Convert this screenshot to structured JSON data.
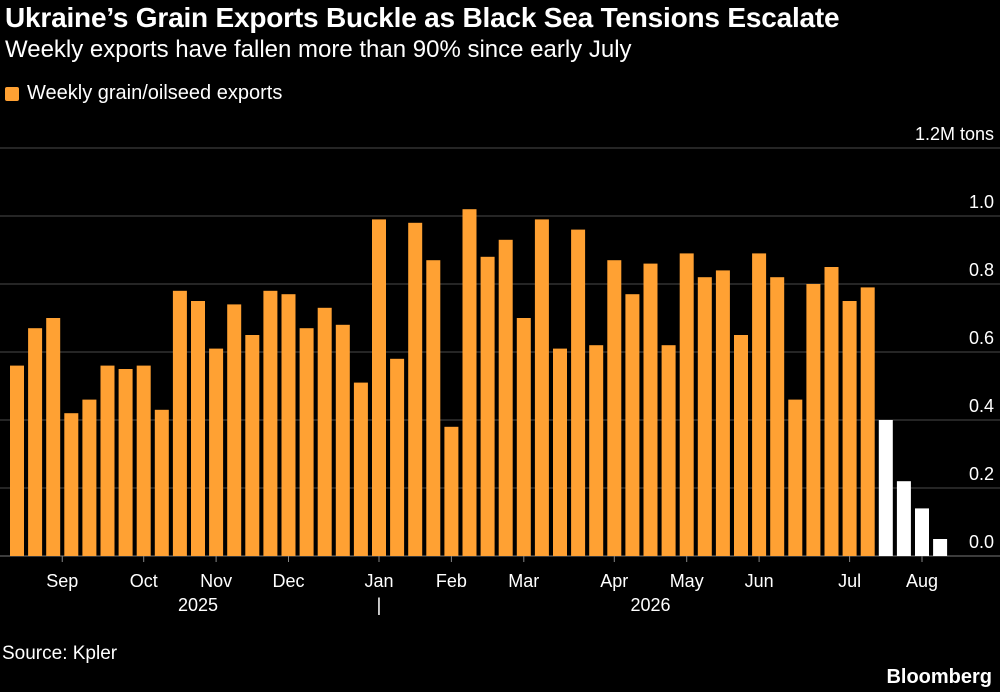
{
  "header": {
    "title": "Ukraine’s Grain Exports Buckle as Black Sea Tensions Escalate",
    "subtitle": "Weekly exports have fallen more than 90% since early July"
  },
  "legend": {
    "label": "Weekly grain/oilseed exports",
    "color": "#ffa133"
  },
  "footer": {
    "source": "Source: Kpler",
    "brand": "Bloomberg"
  },
  "colors": {
    "background": "#000000",
    "bar_main": "#ffa133",
    "bar_recent": "#ffffff",
    "grid": "#4a4a4a",
    "text": "#ffffff"
  },
  "chart_data": {
    "type": "bar",
    "unit_label": "1.2M tons",
    "ylim": [
      0,
      1.2
    ],
    "yticks": [
      {
        "value": 0,
        "label": "0.0"
      },
      {
        "value": 0.2,
        "label": "0.2"
      },
      {
        "value": 0.4,
        "label": "0.4"
      },
      {
        "value": 0.6,
        "label": "0.6"
      },
      {
        "value": 0.8,
        "label": "0.8"
      },
      {
        "value": 1.0,
        "label": "1.0"
      },
      {
        "value": 1.2,
        "label": "1.2M tons"
      }
    ],
    "grid": true,
    "legend_position": "top-left",
    "month_labels": [
      {
        "label": "Sep",
        "at_bar": 2.5
      },
      {
        "label": "Oct",
        "at_bar": 7
      },
      {
        "label": "Nov",
        "at_bar": 11
      },
      {
        "label": "Dec",
        "at_bar": 15
      },
      {
        "label": "Jan",
        "at_bar": 20
      },
      {
        "label": "Feb",
        "at_bar": 24
      },
      {
        "label": "Mar",
        "at_bar": 28
      },
      {
        "label": "Apr",
        "at_bar": 33
      },
      {
        "label": "May",
        "at_bar": 37
      },
      {
        "label": "Jun",
        "at_bar": 41
      },
      {
        "label": "Jul",
        "at_bar": 46
      },
      {
        "label": "Aug",
        "at_bar": 50
      }
    ],
    "year_labels": [
      {
        "label": "2025",
        "at_bar": 10
      },
      {
        "label": "|",
        "at_bar": 20
      },
      {
        "label": "2026",
        "at_bar": 35
      }
    ],
    "series": [
      {
        "name": "Weekly grain/oilseed exports",
        "values": [
          0.56,
          0.67,
          0.7,
          0.42,
          0.46,
          0.56,
          0.55,
          0.56,
          0.43,
          0.78,
          0.75,
          0.61,
          0.74,
          0.65,
          0.78,
          0.77,
          0.67,
          0.73,
          0.68,
          0.51,
          0.99,
          0.58,
          0.98,
          0.87,
          0.38,
          1.02,
          0.88,
          0.93,
          0.7,
          0.99,
          0.61,
          0.96,
          0.62,
          0.87,
          0.77,
          0.86,
          0.62,
          0.89,
          0.82,
          0.84,
          0.65,
          0.89,
          0.82,
          0.46,
          0.8,
          0.85,
          0.75,
          0.79
        ]
      },
      {
        "values": [
          0.4,
          0.22,
          0.14,
          0.05
        ]
      }
    ]
  }
}
